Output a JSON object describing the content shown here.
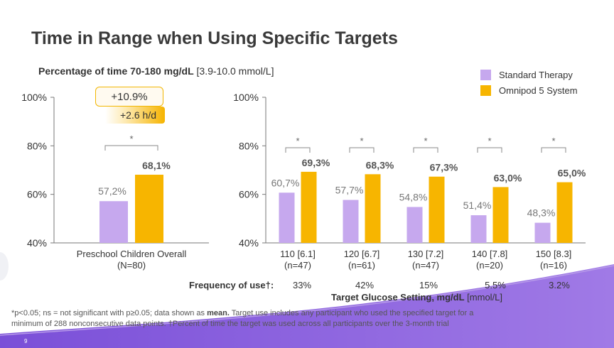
{
  "slide": {
    "title": "Time in Range when Using Specific Targets",
    "subtitle_bold": "Percentage of time 70-180 mg/dL",
    "subtitle_rest": " [3.9-10.0 mmol/L]",
    "badge_pct": "+10.9%",
    "badge_hours": "+2.6 h/d",
    "frequency_label": "Frequency of use†:",
    "frequency_values": [
      "33%",
      "42%",
      "15%",
      "5.5%",
      "3.2%"
    ],
    "xaxis_title_bold": "Target Glucose Setting, mg/dL",
    "xaxis_title_rest": " [mmol/L]",
    "footnote_line1_a": "*p<0.05; ns = not significant with p≥0.05; data shown as ",
    "footnote_line1_b": "mean.",
    "footnote_line1_c": " Target use includes any participant who used the specified target for a",
    "footnote_line2": "minimum of 288 nonconsecutive data points. †Percent of time the target was used across all participants over the 3-month trial",
    "page_number": "9"
  },
  "colors": {
    "standard": "#c6a8ee",
    "omnipod": "#f7b500",
    "accent_purple": "#8c5fdc"
  },
  "chart_data": [
    {
      "type": "bar",
      "categories": [
        "Preschool Children Overall\n(N=80)"
      ],
      "series": [
        {
          "name": "Standard Therapy",
          "values": [
            57.2
          ],
          "labels": [
            "57,2%"
          ]
        },
        {
          "name": "Omnipod 5 System",
          "values": [
            68.1
          ],
          "labels": [
            "68,1%"
          ]
        }
      ],
      "significance": [
        "*"
      ],
      "ylim": [
        40,
        100
      ],
      "yticks": [
        "40%",
        "60%",
        "80%",
        "100%"
      ]
    },
    {
      "type": "bar",
      "categories": [
        "110 [6.1]\n(n=47)",
        "120 [6.7]\n(n=61)",
        "130 [7.2]\n(n=47)",
        "140 [7.8]\n(n=20)",
        "150 [8.3]\n(n=16)"
      ],
      "series": [
        {
          "name": "Standard Therapy",
          "values": [
            60.7,
            57.7,
            54.8,
            51.4,
            48.3
          ],
          "labels": [
            "60,7%",
            "57,7%",
            "54,8%",
            "51,4%",
            "48,3%"
          ]
        },
        {
          "name": "Omnipod 5 System",
          "values": [
            69.3,
            68.3,
            67.3,
            63.0,
            65.0
          ],
          "labels": [
            "69,3%",
            "68,3%",
            "67,3%",
            "63,0%",
            "65,0%"
          ]
        }
      ],
      "significance": [
        "*",
        "*",
        "*",
        "*",
        "*"
      ],
      "ylim": [
        40,
        100
      ],
      "yticks": [
        "40%",
        "60%",
        "80%",
        "100%"
      ],
      "legend_position": "top-right"
    }
  ]
}
